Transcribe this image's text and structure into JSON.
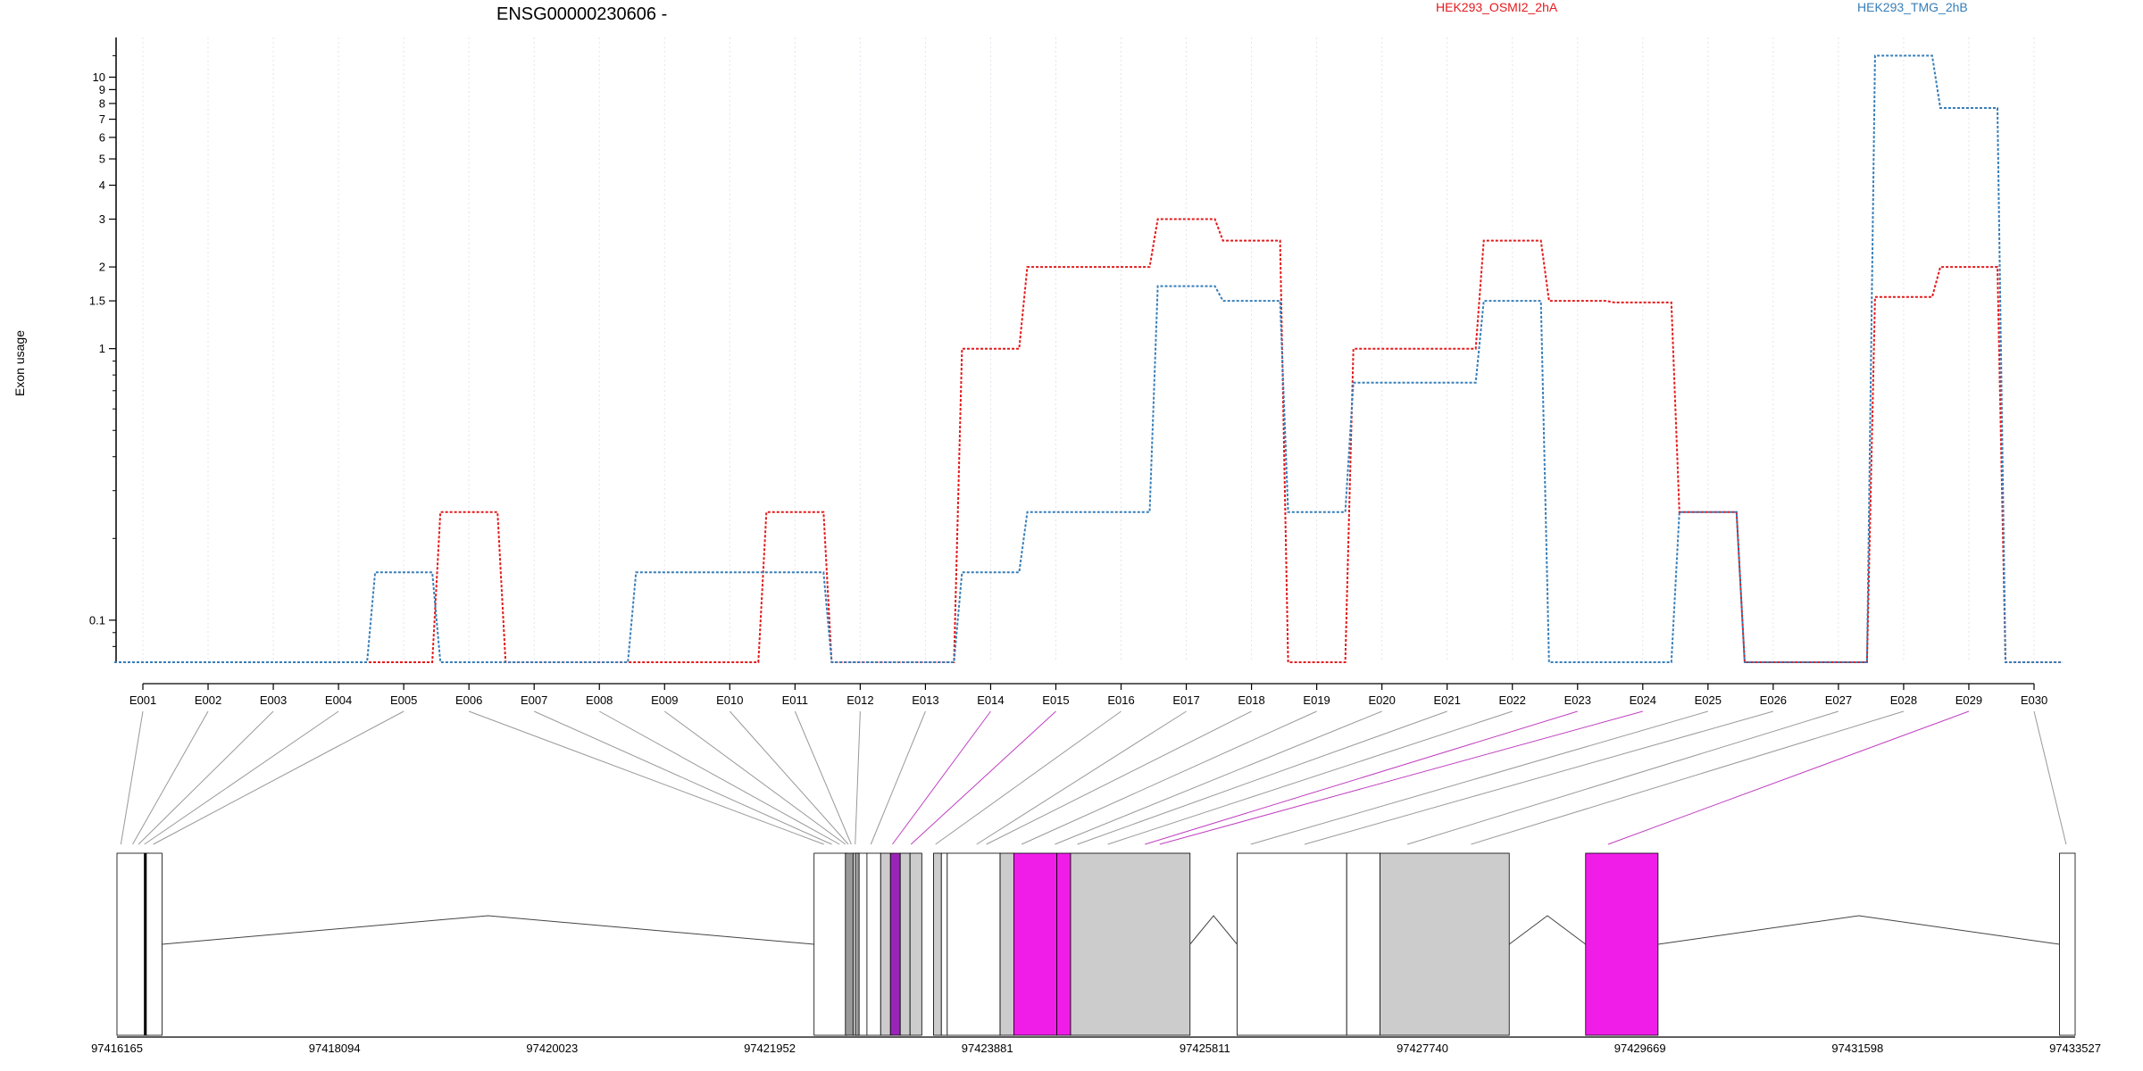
{
  "chart_data": {
    "type": "line",
    "title": "ENSG00000230606 -",
    "ylabel": "Exon usage",
    "xlabel": "",
    "yscale": "log",
    "ylim": [
      0.07,
      14
    ],
    "y_ticks": [
      0.1,
      1,
      1.5,
      2,
      3,
      4,
      5,
      6,
      7,
      8,
      9,
      10
    ],
    "y_tick_labels": [
      "0.1",
      "1",
      "1.5",
      "2",
      "3",
      "4",
      "5",
      "6",
      "7",
      "8",
      "9",
      "10"
    ],
    "grid": "vertical dotted lines at exons",
    "legend": "top, inline labels",
    "categories": [
      "E001",
      "E002",
      "E003",
      "E004",
      "E005",
      "E006",
      "E007",
      "E008",
      "E009",
      "E010",
      "E011",
      "E012",
      "E013",
      "E014",
      "E015",
      "E016",
      "E017",
      "E018",
      "E019",
      "E020",
      "E021",
      "E022",
      "E023",
      "E024",
      "E025",
      "E026",
      "E027",
      "E028",
      "E029",
      "E030"
    ],
    "series": [
      {
        "name": "HEK293_OSMI2_2hA",
        "color": "#e41a1c",
        "values": [
          0.07,
          0.07,
          0.07,
          0.07,
          0.07,
          0.25,
          0.07,
          0.07,
          0.07,
          0.07,
          0.25,
          0.07,
          0.07,
          1.0,
          2.0,
          2.0,
          3.0,
          2.5,
          0.07,
          1.0,
          1.0,
          2.5,
          1.5,
          1.48,
          0.25,
          0.07,
          0.07,
          1.55,
          2.0,
          0.07
        ]
      },
      {
        "name": "HEK293_TMG_2hB",
        "color": "#377eb8",
        "values": [
          0.07,
          0.07,
          0.07,
          0.07,
          0.15,
          0.07,
          0.07,
          0.07,
          0.15,
          0.15,
          0.15,
          0.07,
          0.07,
          0.15,
          0.25,
          0.25,
          1.7,
          1.5,
          0.25,
          0.75,
          0.75,
          1.5,
          0.07,
          0.07,
          0.25,
          0.07,
          0.07,
          12.0,
          7.7,
          0.07
        ]
      }
    ],
    "gene_model": {
      "genomic_start": 97416165,
      "genomic_end": 97433527,
      "coordinate_labels": [
        "97416165",
        "97418094",
        "97420023",
        "97421952",
        "97423881",
        "97425811",
        "97427740",
        "97429669",
        "97431598",
        "97433527"
      ],
      "exon_colors": {
        "unchanged": "#ffffff",
        "coding": "#cccccc",
        "differential": "#f01de8",
        "differential_link": "#c040c0",
        "default_link": "#999999"
      },
      "exon_mapping_targets_x": [
        0.002,
        0.008,
        0.011,
        0.014,
        0.0185,
        0.361,
        0.365,
        0.369,
        0.372,
        0.3735,
        0.375,
        0.377,
        0.385,
        0.396,
        0.4055,
        0.418,
        0.439,
        0.444,
        0.462,
        0.479,
        0.4905,
        0.506,
        0.525,
        0.5325,
        0.579,
        0.6065,
        0.659,
        0.6915,
        0.7615,
        0.9954
      ],
      "highlighted_exons": [
        "E014",
        "E015",
        "E023",
        "E024",
        "E029"
      ]
    }
  }
}
